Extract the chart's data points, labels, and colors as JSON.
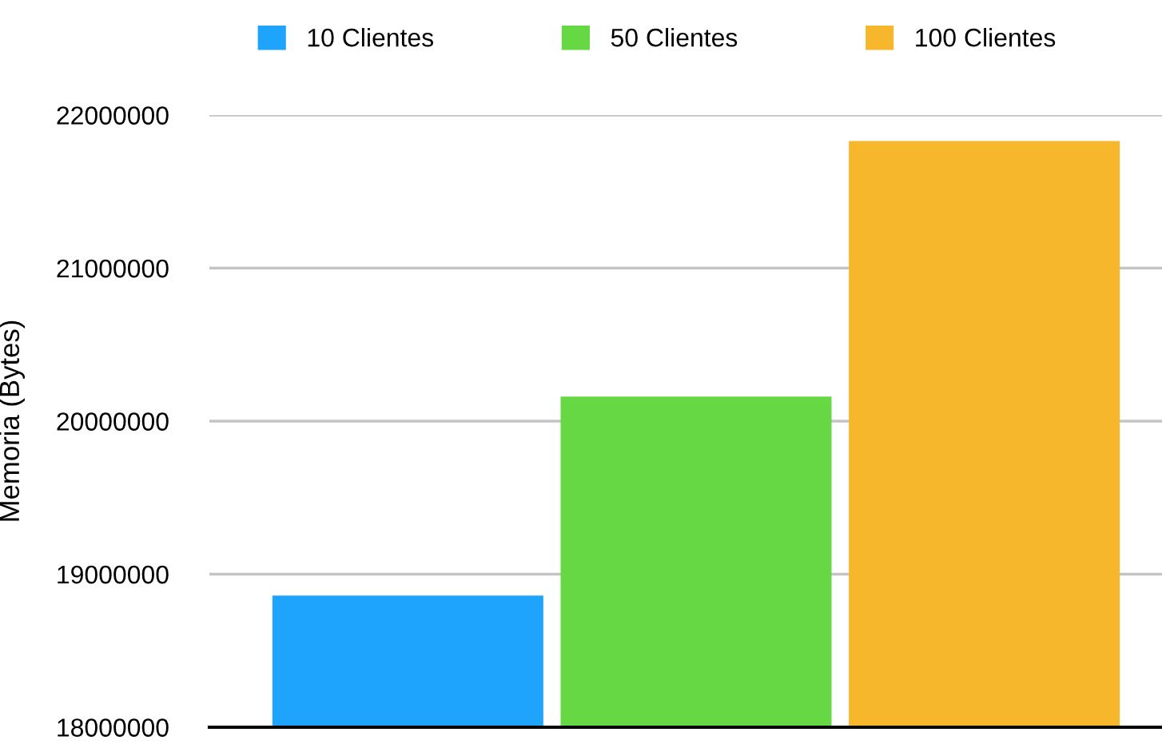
{
  "chart_data": {
    "type": "bar",
    "categories": [
      null
    ],
    "ylabel": "Memoria (Bytes)",
    "series": [
      {
        "name": "10 Clientes",
        "color": "#1ea4fc",
        "values": [
          18860000
        ]
      },
      {
        "name": "50 Clientes",
        "color": "#66d844",
        "values": [
          20160000
        ]
      },
      {
        "name": "100 Clientes",
        "color": "#f6b72d",
        "values": [
          21830000
        ]
      }
    ],
    "ylim": [
      18000000,
      22000000
    ],
    "yticks": [
      18000000,
      19000000,
      20000000,
      21000000,
      22000000
    ],
    "grid": "y",
    "legend": "top"
  }
}
